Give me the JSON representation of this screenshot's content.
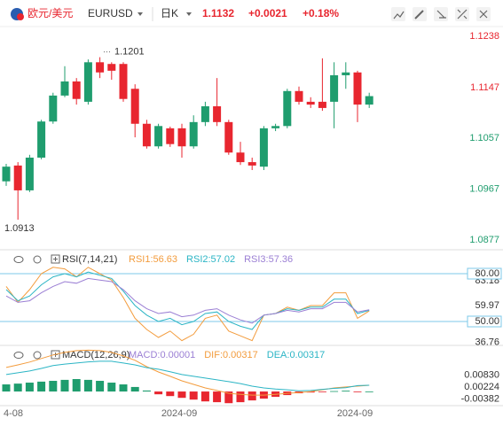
{
  "header": {
    "pair_name": "欧元/美元",
    "symbol": "EURUSD",
    "period": "日K",
    "price": "1.1132",
    "change": "+0.0021",
    "change_pct": "+0.18%"
  },
  "chart_data": [
    {
      "type": "candlestick",
      "up_color": "#1f9d6e",
      "down_color": "#e8262f",
      "categories": [
        "4-08",
        null,
        null,
        null,
        null,
        null,
        null,
        null,
        null,
        null,
        null,
        null,
        null,
        null,
        null,
        "2024-09",
        null,
        null,
        null,
        null,
        null,
        null,
        null,
        null,
        null,
        null,
        null,
        null,
        null,
        null,
        "2024-09",
        null
      ],
      "open": [
        1.0981,
        1.1009,
        1.0965,
        1.1023,
        1.1087,
        1.1133,
        1.1158,
        1.1122,
        1.1192,
        1.1189,
        1.1189,
        1.1145,
        1.1083,
        1.1043,
        1.1075,
        1.1075,
        1.1043,
        1.1086,
        1.1114,
        1.1086,
        1.1032,
        1.1015,
        1.1007,
        1.1075,
        1.1079,
        1.1141,
        1.1122,
        1.1122,
        1.1122,
        1.1169,
        1.1174,
        1.1117
      ],
      "high": [
        1.1012,
        1.1015,
        1.1028,
        1.109,
        1.1138,
        1.1185,
        1.1164,
        1.1197,
        1.1201,
        1.1192,
        1.1192,
        1.1153,
        1.109,
        1.1083,
        1.1078,
        1.1083,
        1.1098,
        1.1122,
        1.1164,
        1.109,
        1.1051,
        1.1023,
        1.1079,
        1.1083,
        1.1145,
        1.1149,
        1.113,
        1.1199,
        1.1192,
        1.1192,
        1.1177,
        1.1138
      ],
      "low": [
        1.0973,
        1.0913,
        1.0962,
        1.102,
        1.1083,
        1.113,
        1.1117,
        1.1117,
        1.1164,
        1.1161,
        1.1122,
        1.1059,
        1.1039,
        1.1039,
        1.1042,
        1.1023,
        1.1039,
        1.1079,
        1.1079,
        1.1028,
        1.101,
        1.1001,
        1.1001,
        1.107,
        1.1075,
        1.1117,
        1.1111,
        1.1106,
        1.1075,
        1.1145,
        1.1086,
        1.1111
      ],
      "close": [
        1.1007,
        1.0965,
        1.1023,
        1.1087,
        1.1133,
        1.1158,
        1.1127,
        1.1192,
        1.1174,
        1.1177,
        1.1127,
        1.1083,
        1.1043,
        1.1079,
        1.1047,
        1.1043,
        1.1086,
        1.1114,
        1.1086,
        1.1032,
        1.1015,
        1.1009,
        1.1075,
        1.1079,
        1.1141,
        1.1122,
        1.1117,
        1.1111,
        1.1169,
        1.1174,
        1.1117,
        1.1132
      ],
      "ylim": [
        1.0877,
        1.1238
      ],
      "yticks": [
        1.1238,
        1.1147,
        1.1057,
        1.0967,
        1.0877
      ],
      "annotations": [
        {
          "text": "1.1201",
          "value": 1.1201
        },
        {
          "text": "1.0913",
          "value": 1.0913
        }
      ]
    },
    {
      "type": "line",
      "title": "RSI(7,14,21)",
      "ylim": [
        35,
        85
      ],
      "yticks": [
        83.18,
        {
          "value": 80,
          "label": "80.00"
        },
        59.97,
        {
          "value": 50,
          "label": "50.00"
        },
        36.76
      ],
      "hlines": [
        80,
        50
      ],
      "hline_color": "#7cc8e8",
      "series": [
        {
          "name": "RSI1:56.63",
          "color": "#f39c3d",
          "values": [
            72,
            62,
            70,
            80,
            84,
            83,
            78,
            84,
            80,
            76,
            65,
            52,
            45,
            40,
            44,
            38,
            42,
            52,
            54,
            44,
            41,
            38,
            54,
            55,
            59,
            57,
            60,
            60,
            68,
            68,
            52,
            56.63
          ]
        },
        {
          "name": "RSI2:57.02",
          "color": "#2bb5c5",
          "values": [
            70,
            63,
            66,
            73,
            78,
            80,
            78,
            81,
            79,
            77,
            69,
            60,
            54,
            50,
            52,
            48,
            50,
            55,
            56,
            50,
            47,
            45,
            54,
            55,
            58,
            57,
            59,
            59,
            64,
            64,
            55,
            57.02
          ]
        },
        {
          "name": "RSI3:57.36",
          "color": "#9b7fd4",
          "values": [
            66,
            62,
            63,
            68,
            72,
            75,
            74,
            77,
            76,
            75,
            70,
            63,
            58,
            55,
            56,
            53,
            54,
            57,
            58,
            54,
            51,
            49,
            54,
            55,
            57,
            56,
            58,
            58,
            62,
            62,
            56,
            57.36
          ]
        }
      ]
    },
    {
      "type": "macd",
      "title": "MACD(12,26,9)",
      "ylim": [
        -0.0058,
        0.0211
      ],
      "yticks": [
        {
          "value": 0.0083,
          "label": "0.00830"
        },
        0.00224,
        -0.00382
      ],
      "up_color": "#1f9d6e",
      "down_color": "#e8262f",
      "series": [
        {
          "name": "MACD:0.00001",
          "color": "#9b7fd4",
          "values": [
            0.0036,
            0.004,
            0.0045,
            0.005,
            0.0054,
            0.0059,
            0.0063,
            0.0059,
            0.0054,
            0.0045,
            0.0036,
            0.0023,
            0.0005,
            -0.0014,
            -0.0023,
            -0.0032,
            -0.0041,
            -0.005,
            -0.0054,
            -0.0059,
            -0.0054,
            -0.0045,
            -0.0036,
            -0.0027,
            -0.0018,
            -0.0009,
            -0.0005,
            -0.0002,
            0.0002,
            0.0004,
            -0.0003,
            1e-05
          ]
        },
        {
          "name": "DIF:0.00317",
          "color": "#f39c3d",
          "values": [
            0.0122,
            0.0135,
            0.0149,
            0.0167,
            0.0185,
            0.0198,
            0.0207,
            0.0209,
            0.0207,
            0.0198,
            0.018,
            0.0158,
            0.0126,
            0.0099,
            0.0077,
            0.0054,
            0.0036,
            0.0018,
            0.0005,
            -0.0009,
            -0.0014,
            -0.0018,
            -0.0018,
            -0.0014,
            -0.0009,
            -0.0005,
            0.0,
            0.0009,
            0.0018,
            0.0023,
            0.0027,
            0.00317
          ]
        },
        {
          "name": "DEA:0.00317",
          "color": "#2bb5c5",
          "values": [
            0.0086,
            0.0095,
            0.0104,
            0.0117,
            0.0131,
            0.0139,
            0.0144,
            0.015,
            0.0153,
            0.0153,
            0.0144,
            0.0135,
            0.0121,
            0.0113,
            0.01,
            0.0086,
            0.0077,
            0.0068,
            0.0059,
            0.005,
            0.004,
            0.0027,
            0.0018,
            0.0013,
            0.0009,
            0.0004,
            0.0005,
            0.0011,
            0.0016,
            0.0019,
            0.003,
            0.00317
          ]
        }
      ]
    }
  ]
}
